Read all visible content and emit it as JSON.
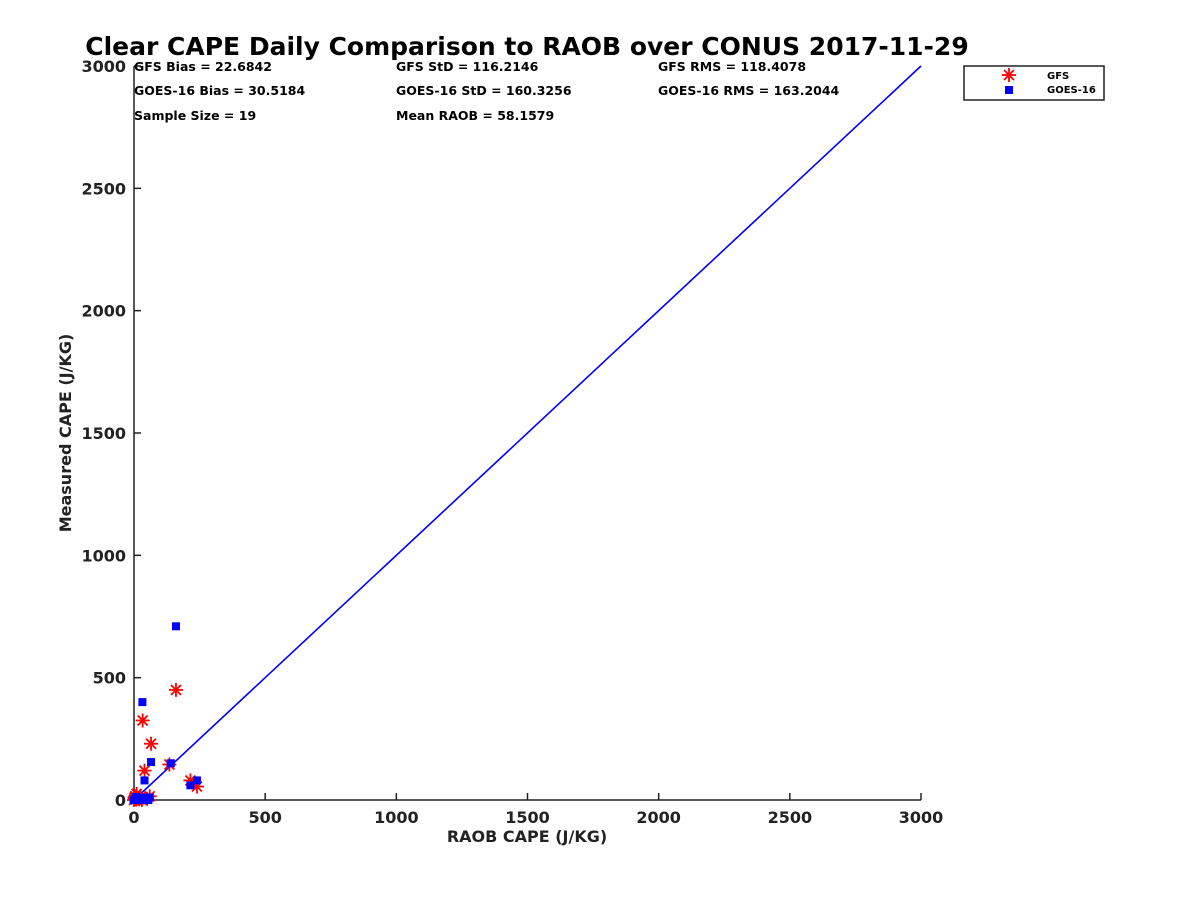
{
  "chart_data": {
    "type": "scatter",
    "title": "Clear CAPE Daily Comparison to RAOB over CONUS 2017-11-29",
    "xlabel": "RAOB CAPE (J/KG)",
    "ylabel": "Measured CAPE (J/KG)",
    "xlim": [
      0,
      3000
    ],
    "ylim": [
      0,
      3000
    ],
    "xticks": [
      "0",
      "500",
      "1000",
      "1500",
      "2000",
      "2500",
      "3000"
    ],
    "yticks": [
      "0",
      "500",
      "1000",
      "1500",
      "2000",
      "2500",
      "3000"
    ],
    "grid": false,
    "legend_position": "top-right",
    "reference_line": {
      "name": "1:1 line",
      "x": [
        0,
        3000
      ],
      "y": [
        0,
        3000
      ],
      "color": "#0000ff"
    },
    "stats": {
      "gfs_bias": "GFS Bias = 22.6842",
      "gfs_std": "GFS StD = 116.2146",
      "gfs_rms": "GFS RMS = 118.4078",
      "goes_bias": "GOES-16 Bias = 30.5184",
      "goes_std": "GOES-16 StD = 160.3256",
      "goes_rms": "GOES-16 RMS = 163.2044",
      "sample_size": "Sample Size = 19",
      "mean_raob": "Mean RAOB = 58.1579"
    },
    "series": [
      {
        "name": "GFS",
        "marker": "asterisk",
        "color": "#ff0000",
        "points": [
          [
            0,
            0
          ],
          [
            3,
            5
          ],
          [
            5,
            15
          ],
          [
            8,
            2
          ],
          [
            10,
            25
          ],
          [
            15,
            8
          ],
          [
            20,
            3
          ],
          [
            25,
            12
          ],
          [
            30,
            0
          ],
          [
            33,
            325
          ],
          [
            40,
            120
          ],
          [
            50,
            5
          ],
          [
            60,
            15
          ],
          [
            65,
            230
          ],
          [
            135,
            145
          ],
          [
            160,
            450
          ],
          [
            215,
            80
          ],
          [
            240,
            55
          ],
          [
            2,
            10
          ]
        ]
      },
      {
        "name": "GOES-16",
        "marker": "square",
        "color": "#0000ff",
        "points": [
          [
            0,
            0
          ],
          [
            5,
            3
          ],
          [
            10,
            8
          ],
          [
            15,
            2
          ],
          [
            20,
            5
          ],
          [
            25,
            0
          ],
          [
            30,
            10
          ],
          [
            32,
            400
          ],
          [
            40,
            80
          ],
          [
            45,
            5
          ],
          [
            55,
            2
          ],
          [
            60,
            10
          ],
          [
            65,
            155
          ],
          [
            140,
            150
          ],
          [
            160,
            710
          ],
          [
            215,
            60
          ],
          [
            240,
            80
          ],
          [
            8,
            12
          ],
          [
            50,
            0
          ]
        ]
      }
    ]
  }
}
